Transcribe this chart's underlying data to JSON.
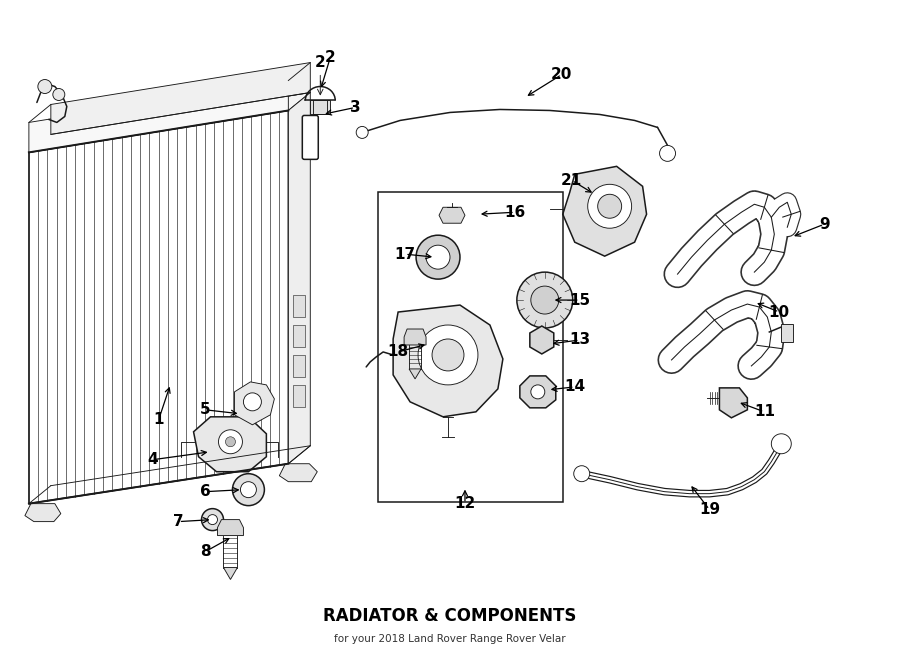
{
  "title": "RADIATOR & COMPONENTS",
  "subtitle": "for your 2018 Land Rover Range Rover Velar",
  "bg_color": "#ffffff",
  "lc": "#1a1a1a",
  "fig_width": 9.0,
  "fig_height": 6.62,
  "annotations": [
    [
      "1",
      [
        1.58,
        2.42
      ],
      [
        1.7,
        2.78
      ]
    ],
    [
      "2",
      [
        3.3,
        6.05
      ],
      [
        3.2,
        5.72
      ]
    ],
    [
      "3",
      [
        3.55,
        5.55
      ],
      [
        3.22,
        5.48
      ]
    ],
    [
      "4",
      [
        1.52,
        2.02
      ],
      [
        2.1,
        2.1
      ]
    ],
    [
      "5",
      [
        2.05,
        2.52
      ],
      [
        2.4,
        2.48
      ]
    ],
    [
      "6",
      [
        2.05,
        1.7
      ],
      [
        2.42,
        1.72
      ]
    ],
    [
      "7",
      [
        1.78,
        1.4
      ],
      [
        2.12,
        1.42
      ]
    ],
    [
      "8",
      [
        2.05,
        1.1
      ],
      [
        2.32,
        1.25
      ]
    ],
    [
      "9",
      [
        8.25,
        4.38
      ],
      [
        7.92,
        4.25
      ]
    ],
    [
      "10",
      [
        7.8,
        3.5
      ],
      [
        7.55,
        3.6
      ]
    ],
    [
      "11",
      [
        7.65,
        2.5
      ],
      [
        7.38,
        2.6
      ]
    ],
    [
      "12",
      [
        4.65,
        1.58
      ],
      [
        4.65,
        1.75
      ]
    ],
    [
      "13",
      [
        5.8,
        3.22
      ],
      [
        5.5,
        3.18
      ]
    ],
    [
      "14",
      [
        5.75,
        2.75
      ],
      [
        5.48,
        2.72
      ]
    ],
    [
      "15",
      [
        5.8,
        3.62
      ],
      [
        5.52,
        3.62
      ]
    ],
    [
      "16",
      [
        5.15,
        4.5
      ],
      [
        4.78,
        4.48
      ]
    ],
    [
      "17",
      [
        4.05,
        4.08
      ],
      [
        4.35,
        4.05
      ]
    ],
    [
      "18",
      [
        3.98,
        3.1
      ],
      [
        4.28,
        3.18
      ]
    ],
    [
      "19",
      [
        7.1,
        1.52
      ],
      [
        6.9,
        1.78
      ]
    ],
    [
      "20",
      [
        5.62,
        5.88
      ],
      [
        5.25,
        5.65
      ]
    ],
    [
      "21",
      [
        5.72,
        4.82
      ],
      [
        5.95,
        4.68
      ]
    ]
  ]
}
